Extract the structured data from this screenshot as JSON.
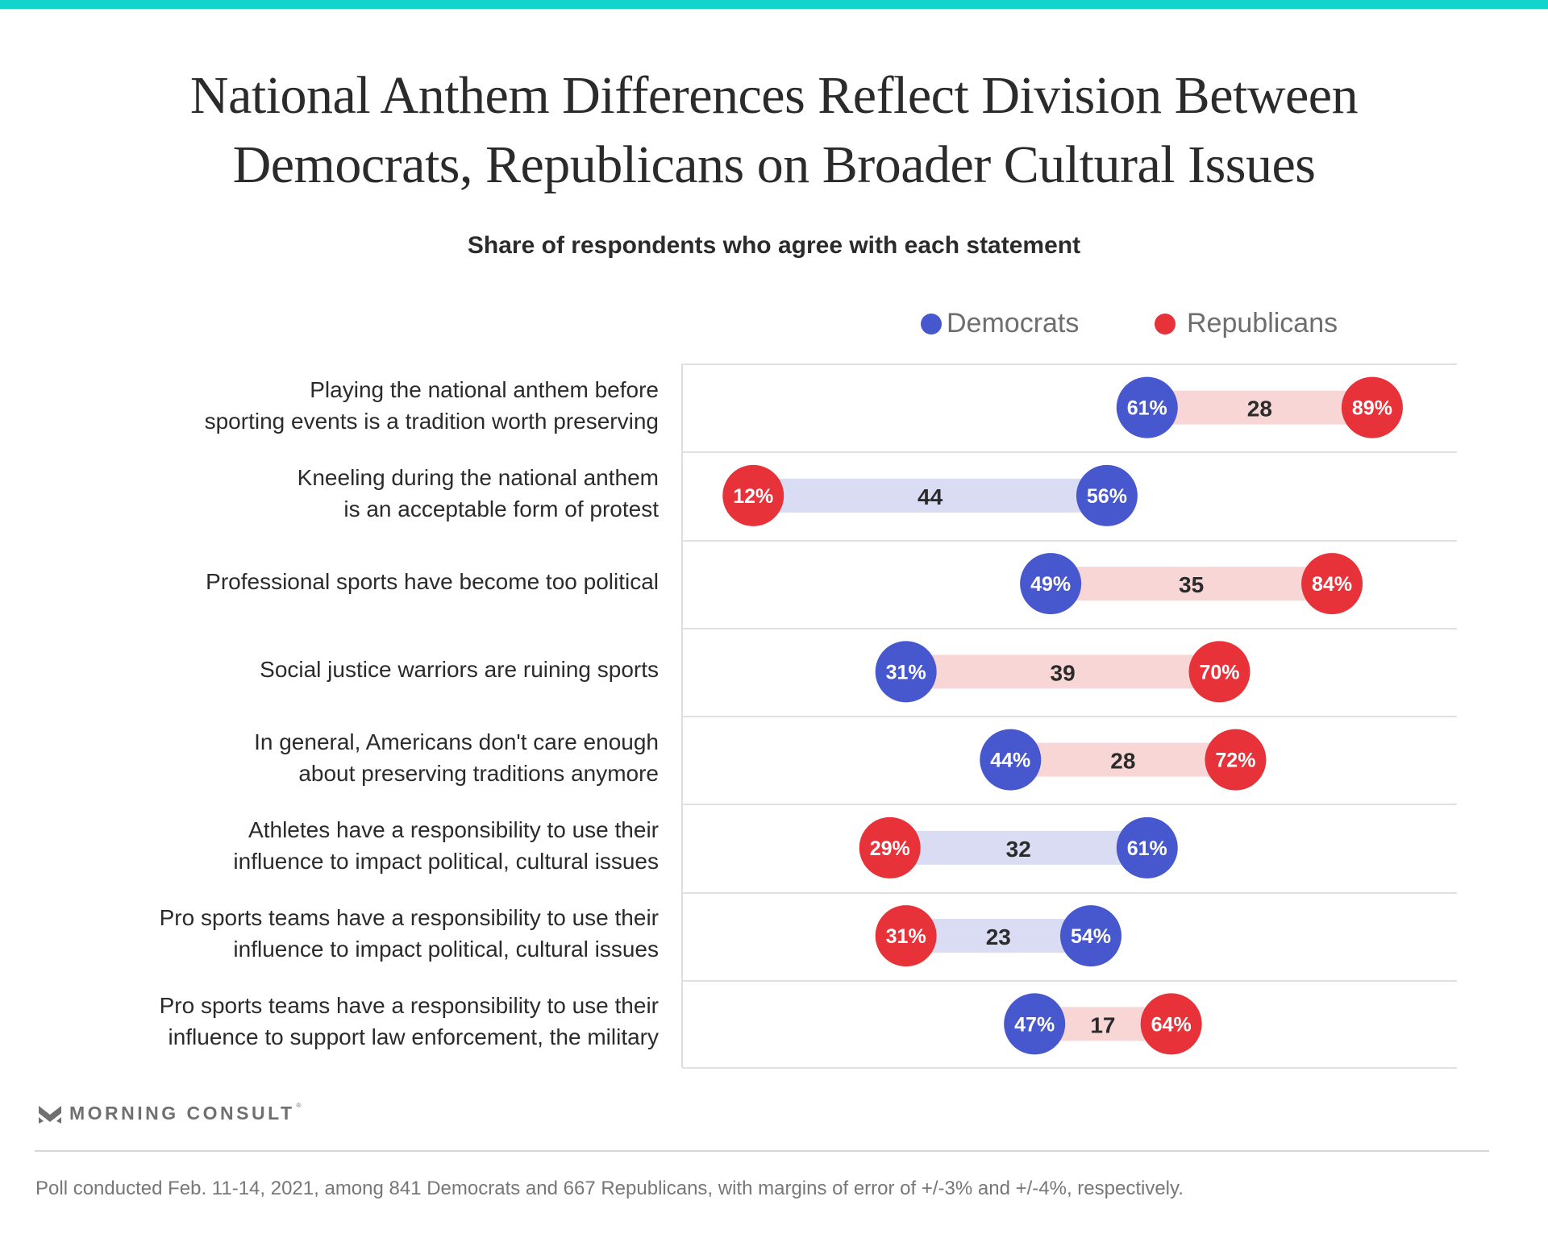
{
  "header": {
    "title_line1": "National Anthem Differences Reflect Division Between",
    "title_line2": "Democrats, Republicans on Broader Cultural Issues",
    "subtitle": "Share of respondents who agree with each statement"
  },
  "legend": [
    {
      "label": "Democrats",
      "color": "#4758CF"
    },
    {
      "label": "Republicans",
      "color": "#E8323A"
    }
  ],
  "colors": {
    "democrats": "#4758CF",
    "republicans": "#E8323A",
    "bar_dem_higher": "#DADCF4",
    "bar_rep_higher": "#F8D6D6",
    "accent_top": "#11D5CB"
  },
  "chart_data": {
    "type": "dumbbell",
    "title": "National Anthem Differences Reflect Division Between Democrats, Republicans on Broader Cultural Issues",
    "subtitle": "Share of respondents who agree with each statement",
    "xlabel": "",
    "ylabel": "",
    "xlim": [
      0,
      100
    ],
    "unit": "%",
    "grid": "horizontal row separators",
    "legend_position": "top-right",
    "categories": [
      [
        "Playing the national anthem before",
        "sporting events is a tradition worth preserving"
      ],
      [
        "Kneeling during the national anthem",
        "is an acceptable form of protest"
      ],
      [
        "Professional sports have become too political"
      ],
      [
        "Social justice warriors are ruining sports"
      ],
      [
        "In general, Americans don't care enough",
        "about preserving traditions anymore"
      ],
      [
        "Athletes have a responsibility to use their",
        "influence to impact political, cultural issues"
      ],
      [
        "Pro sports teams have a responsibility to use their",
        "influence to impact political, cultural issues"
      ],
      [
        "Pro sports teams have a responsibility to use their",
        "influence to support law enforcement, the military"
      ]
    ],
    "series": [
      {
        "name": "Democrats",
        "values": [
          61,
          56,
          49,
          31,
          44,
          61,
          54,
          47
        ]
      },
      {
        "name": "Republicans",
        "values": [
          89,
          12,
          84,
          70,
          72,
          29,
          31,
          64
        ]
      }
    ],
    "gap_labels": [
      28,
      44,
      35,
      39,
      28,
      32,
      23,
      17
    ]
  },
  "branding": {
    "logo_text": "MORNING CONSULT",
    "logo_mark": "®"
  },
  "footer": {
    "note": "Poll conducted Feb. 11-14, 2021, among 841 Democrats and 667 Republicans, with margins of error of +/-3% and +/-4%, respectively."
  }
}
